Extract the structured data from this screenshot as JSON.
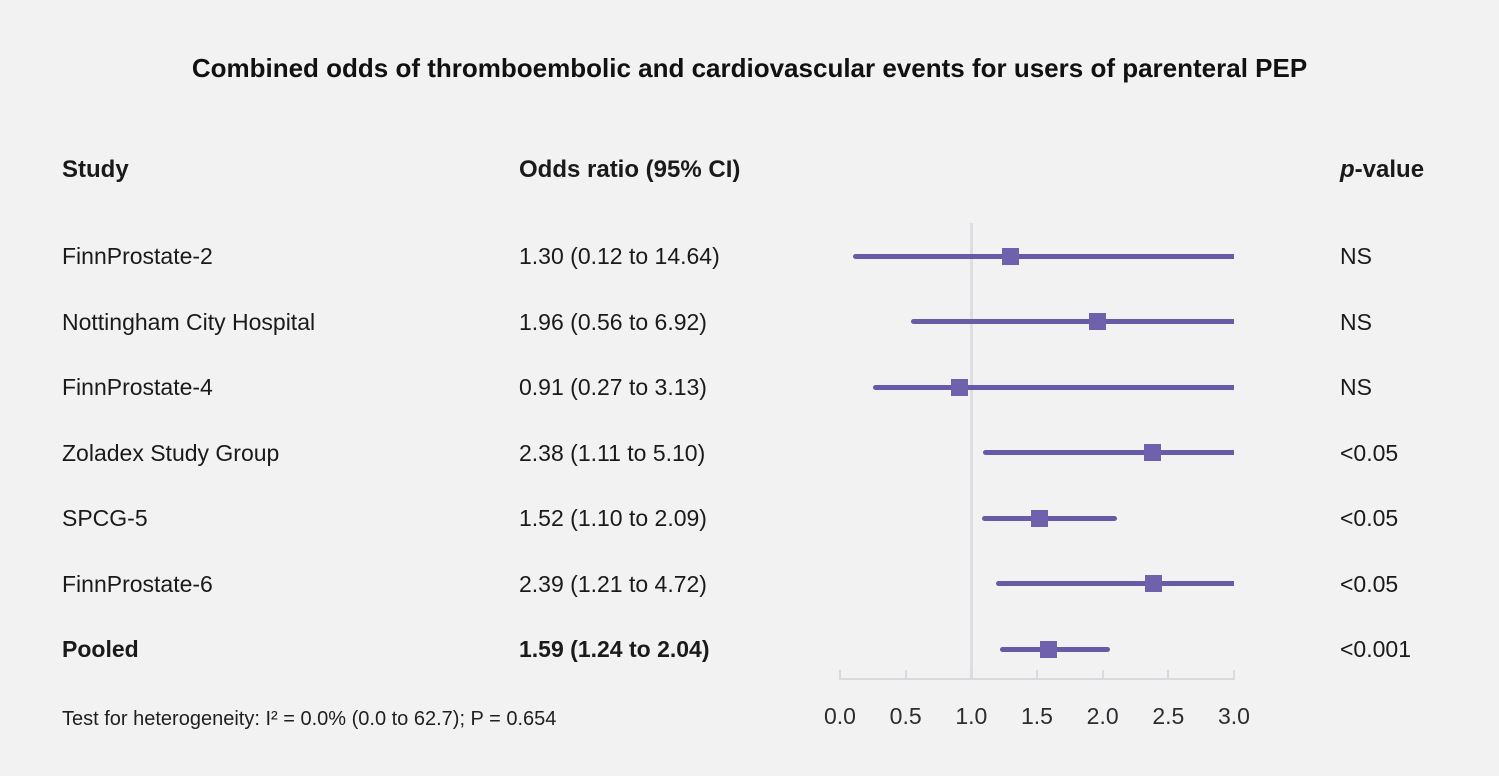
{
  "title": "Combined odds of thromboembolic and cardiovascular events for users of parenteral PEP",
  "header": {
    "study": "Study",
    "odds_ratio": "Odds ratio (95% CI)",
    "pvalue_italic": "p",
    "pvalue_suffix": "-value"
  },
  "rows": [
    {
      "study": "FinnProstate-2",
      "or_text": "1.30 (0.12 to 14.64)",
      "p": "NS"
    },
    {
      "study": "Nottingham City Hospital",
      "or_text": "1.96 (0.56 to 6.92)",
      "p": "NS"
    },
    {
      "study": "FinnProstate-4",
      "or_text": "0.91 (0.27 to 3.13)",
      "p": "NS"
    },
    {
      "study": "Zoladex Study Group",
      "or_text": "2.38 (1.11 to 5.10)",
      "p": "<0.05"
    },
    {
      "study": "SPCG-5",
      "or_text": "1.52 (1.10 to 2.09)",
      "p": "<0.05"
    },
    {
      "study": "FinnProstate-6",
      "or_text": "2.39 (1.21 to 4.72)",
      "p": "<0.05"
    },
    {
      "study": "Pooled",
      "or_text": "1.59 (1.24 to 2.04)",
      "p": "<0.001"
    }
  ],
  "footnote": "Test for heterogeneity: I² = 0.0% (0.0 to 62.7); P = 0.654",
  "colors": {
    "background": "#f2f2f2",
    "ci_line": "#685aa4",
    "marker": "#7061ac",
    "reference_line": "#dbdfe4",
    "axis": "#d7dadf"
  },
  "chart_data": {
    "type": "forest",
    "title": "Combined odds of thromboembolic and cardiovascular events for users of parenteral PEP",
    "x_ticks": [
      "0.0",
      "0.5",
      "1.0",
      "1.5",
      "2.0",
      "2.5",
      "3.0"
    ],
    "xlim": [
      0.0,
      3.0
    ],
    "reference_line_x": 1.0,
    "clip_upper_at": 3.0,
    "grid": false,
    "legend": false,
    "series": [
      {
        "label": "FinnProstate-2",
        "odds_ratio": 1.3,
        "ci_low": 0.12,
        "ci_high": 14.64,
        "p_value": "NS",
        "pooled": false
      },
      {
        "label": "Nottingham City Hospital",
        "odds_ratio": 1.96,
        "ci_low": 0.56,
        "ci_high": 6.92,
        "p_value": "NS",
        "pooled": false
      },
      {
        "label": "FinnProstate-4",
        "odds_ratio": 0.91,
        "ci_low": 0.27,
        "ci_high": 3.13,
        "p_value": "NS",
        "pooled": false
      },
      {
        "label": "Zoladex Study Group",
        "odds_ratio": 2.38,
        "ci_low": 1.11,
        "ci_high": 5.1,
        "p_value": "<0.05",
        "pooled": false
      },
      {
        "label": "SPCG-5",
        "odds_ratio": 1.52,
        "ci_low": 1.1,
        "ci_high": 2.09,
        "p_value": "<0.05",
        "pooled": false
      },
      {
        "label": "FinnProstate-6",
        "odds_ratio": 2.39,
        "ci_low": 1.21,
        "ci_high": 4.72,
        "p_value": "<0.05",
        "pooled": false
      },
      {
        "label": "Pooled",
        "odds_ratio": 1.59,
        "ci_low": 1.24,
        "ci_high": 2.04,
        "p_value": "<0.001",
        "pooled": true
      }
    ],
    "heterogeneity_note": "Test for heterogeneity: I² = 0.0% (0.0 to 62.7); P = 0.654"
  }
}
